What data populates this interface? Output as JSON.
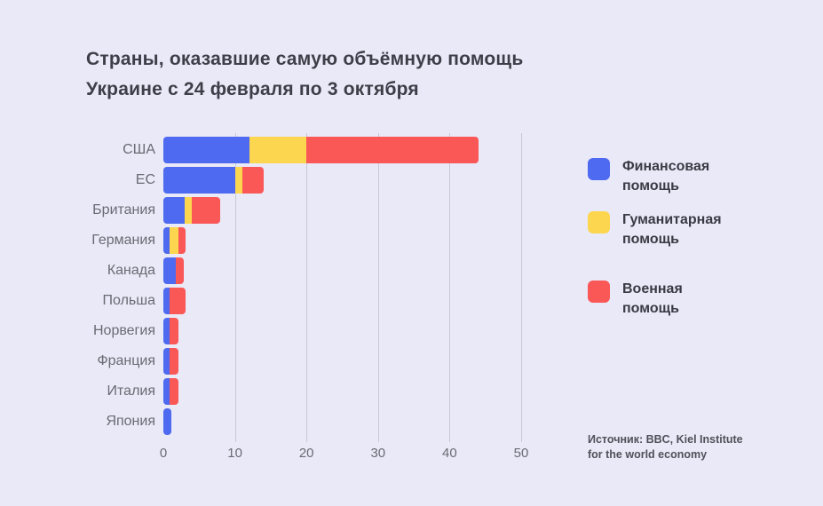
{
  "title": {
    "line1": "Страны, оказавшие самую объёмную помощь",
    "line2": "Украине с 24 февраля по 3 октября"
  },
  "legend": {
    "items": [
      {
        "label": "Финансовая помощь",
        "color": "#4d6af0"
      },
      {
        "label": "Гуманитарная помощь",
        "color": "#fcd64f"
      },
      {
        "label": "Военная помощь",
        "color": "#fa5757"
      }
    ]
  },
  "source": {
    "line1": "Источник: BBC, Kiel Institute",
    "line2": "for the world economy"
  },
  "colors": {
    "background": "#eae9f7",
    "financial": "#4d6af0",
    "humanitarian": "#fcd64f",
    "military": "#fa5757",
    "gridline": "#c9c9d6",
    "title_text": "#3e3e48",
    "label_text": "#6a6a74"
  },
  "chart_data": {
    "type": "bar",
    "stacked": true,
    "orientation": "horizontal",
    "title": "Страны, оказавшие самую объёмную помощь Украине с 24 февраля по 3 октября",
    "categories": [
      "США",
      "ЕС",
      "Британия",
      "Германия",
      "Канада",
      "Польша",
      "Норвегия",
      "Франция",
      "Италия",
      "Япония"
    ],
    "series": [
      {
        "name": "Финансовая помощь",
        "color": "#4d6af0",
        "values": [
          12,
          10,
          3,
          0.9,
          1.7,
          0.9,
          0.9,
          0.9,
          0.9,
          1.1
        ]
      },
      {
        "name": "Гуманитарная помощь",
        "color": "#fcd64f",
        "values": [
          8,
          1,
          1,
          1.2,
          0,
          0,
          0,
          0,
          0,
          0
        ]
      },
      {
        "name": "Военная помощь",
        "color": "#fa5757",
        "values": [
          24,
          3,
          4,
          1,
          1.2,
          2.2,
          1.2,
          1.2,
          1.2,
          0
        ]
      }
    ],
    "totals": [
      44,
      14,
      8,
      3.1,
      2.9,
      3.1,
      2.1,
      2.1,
      2.1,
      1.1
    ],
    "x_ticks": [
      0,
      10,
      20,
      30,
      40,
      50
    ],
    "xlim": [
      0,
      56
    ],
    "xlabel": "",
    "ylabel": "",
    "grid": "vertical",
    "legend_position": "right",
    "source": "Источник: BBC, Kiel Institute for the world economy"
  }
}
